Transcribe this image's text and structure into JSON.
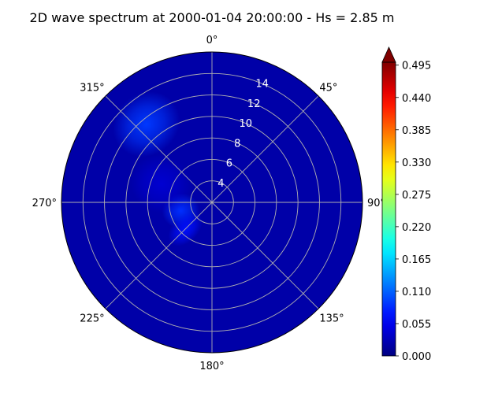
{
  "chart_data": {
    "type": "heatmap",
    "projection": "polar",
    "title": "2D wave spectrum at 2000-01-04 20:00:00 - Hs = 2.85 m",
    "theta_direction": "clockwise",
    "theta_zero": "N",
    "theta_ticks": [
      "0°",
      "45°",
      "90°",
      "135°",
      "180°",
      "225°",
      "270°",
      "315°"
    ],
    "r_ticks": [
      4,
      6,
      8,
      10,
      12,
      14
    ],
    "r_tick_labels": [
      "4",
      "6",
      "8",
      "10",
      "12",
      "14"
    ],
    "rlim": [
      2,
      16
    ],
    "grid": true,
    "colormap": "jet",
    "colorbar": {
      "ticks": [
        "0.000",
        "0.055",
        "0.110",
        "0.165",
        "0.220",
        "0.275",
        "0.330",
        "0.385",
        "0.440",
        "0.495"
      ],
      "range": [
        0,
        0.5
      ],
      "extend": "max",
      "placement": "right"
    },
    "energy_peaks": [
      {
        "direction_deg": 320,
        "period": 11.5,
        "value": 0.09,
        "spread_deg": 14,
        "spread_r": 1.8
      },
      {
        "direction_deg": 255,
        "period": 5.0,
        "value": 0.085,
        "spread_deg": 22,
        "spread_r": 1.1
      },
      {
        "direction_deg": 225,
        "period": 5.5,
        "value": 0.07,
        "spread_deg": 14,
        "spread_r": 1.2
      },
      {
        "direction_deg": 290,
        "period": 7.0,
        "value": 0.04,
        "spread_deg": 22,
        "spread_r": 1.8
      }
    ],
    "background_value": 0.02
  }
}
